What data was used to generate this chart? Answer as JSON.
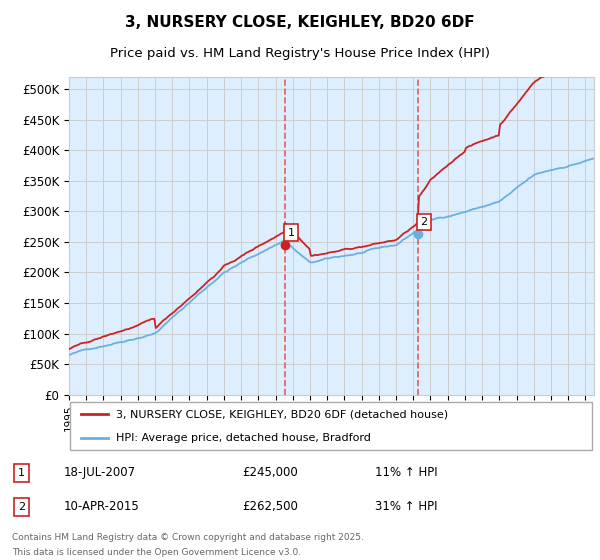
{
  "title": "3, NURSERY CLOSE, KEIGHLEY, BD20 6DF",
  "subtitle": "Price paid vs. HM Land Registry's House Price Index (HPI)",
  "ylim": [
    0,
    520000
  ],
  "ytick_labels": [
    "£0",
    "£50K",
    "£100K",
    "£150K",
    "£200K",
    "£250K",
    "£300K",
    "£350K",
    "£400K",
    "£450K",
    "£500K"
  ],
  "sale1_date": 2007.54,
  "sale1_price": 245000,
  "sale1_label": "1",
  "sale1_date_str": "18-JUL-2007",
  "sale1_price_str": "£245,000",
  "sale1_hpi_str": "11% ↑ HPI",
  "sale2_date": 2015.27,
  "sale2_price": 262500,
  "sale2_label": "2",
  "sale2_date_str": "10-APR-2015",
  "sale2_price_str": "£262,500",
  "sale2_hpi_str": "31% ↑ HPI",
  "legend_line1": "3, NURSERY CLOSE, KEIGHLEY, BD20 6DF (detached house)",
  "legend_line2": "HPI: Average price, detached house, Bradford",
  "footnote_line1": "Contains HM Land Registry data © Crown copyright and database right 2025.",
  "footnote_line2": "This data is licensed under the Open Government Licence v3.0.",
  "hpi_color": "#6ab0e0",
  "price_color": "#cc2222",
  "vline_color": "#e06060",
  "grid_color": "#cccccc",
  "bg_color": "#ddeeff",
  "title_fontsize": 11,
  "subtitle_fontsize": 9.5
}
